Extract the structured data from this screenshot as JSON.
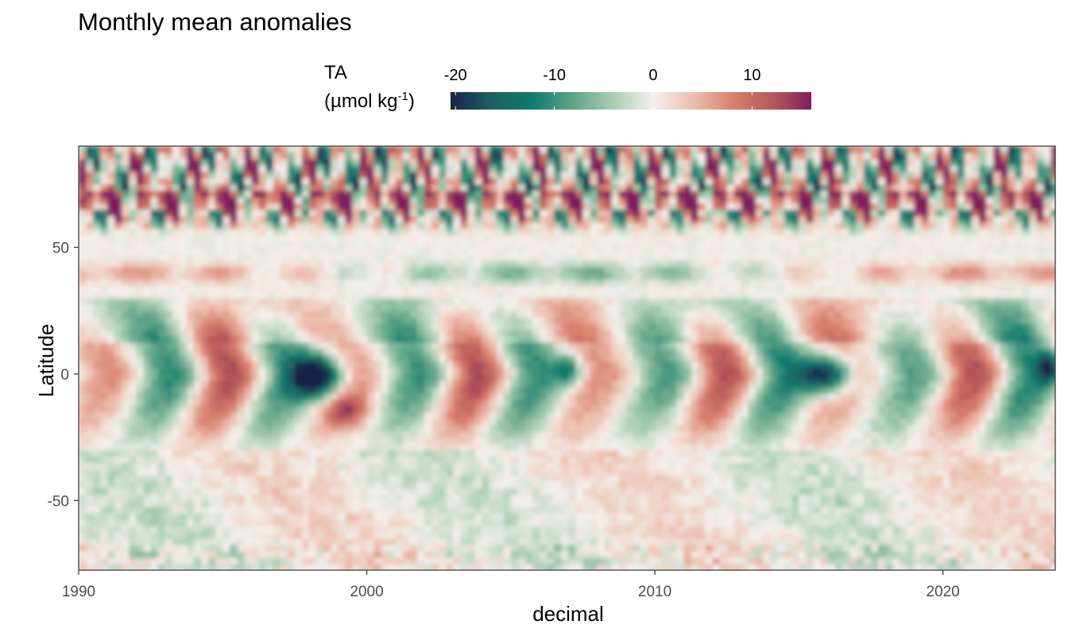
{
  "title": "Monthly mean anomalies",
  "legend": {
    "title": "TA",
    "unit_prefix": "(µmol kg",
    "unit_exp": "-1",
    "unit_suffix": ")",
    "colors": [
      "#162447",
      "#1f5f64",
      "#0f7a6d",
      "#5ea386",
      "#a9cdb2",
      "#f4f0ec",
      "#ecbfae",
      "#d9806e",
      "#b85a59",
      "#7e1e5e"
    ],
    "ticks": [
      -20,
      -10,
      0,
      10
    ],
    "range": [
      -20.5,
      16
    ]
  },
  "chart_data": {
    "type": "heatmap",
    "title": "Monthly mean anomalies",
    "xlabel": "decimal",
    "ylabel": "Latitude",
    "xlim": [
      1990,
      2023.9
    ],
    "ylim": [
      -77.5,
      90
    ],
    "x_ticks": [
      1990,
      2000,
      2010,
      2020
    ],
    "y_ticks": [
      -50,
      0,
      50
    ],
    "value_range": [
      -20.5,
      16
    ],
    "colorbar_ticks": [
      -20,
      -10,
      0,
      10
    ],
    "legend_position": "top",
    "grid": false,
    "features": [
      {
        "lat_band": [
          55,
          90
        ],
        "pattern": "strong alternating positive/negative anomalies with seasonal periodicity"
      },
      {
        "lat_band": [
          -5,
          30
        ],
        "pattern": "interannual alternating anomalies (ENSO-like)"
      },
      {
        "x": 1998,
        "lat": 0,
        "value": -20.5,
        "pattern": "strongest negative anomaly near equator"
      },
      {
        "x": 2016,
        "lat": 0,
        "value": -20,
        "pattern": "strong negative anomaly near equator"
      },
      {
        "lat_band": [
          -75,
          -30
        ],
        "pattern": "weak anomalies near zero"
      }
    ]
  }
}
